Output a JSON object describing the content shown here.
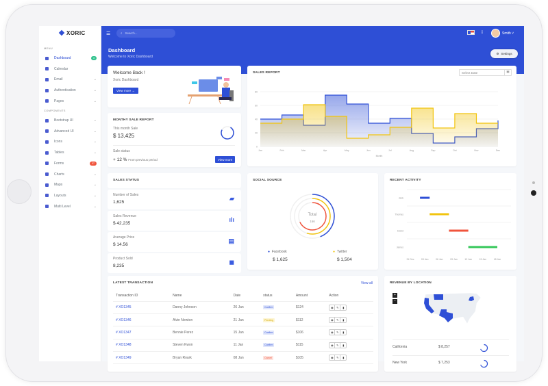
{
  "app": {
    "logo": "XORIC"
  },
  "sidebar": {
    "menu_label": "MENU",
    "components_label": "COMPONENTS",
    "items": [
      {
        "label": "Dashboard",
        "badge": "3",
        "badge_color": "#34c38f",
        "active": true
      },
      {
        "label": "Calendar"
      },
      {
        "label": "Email",
        "chevron": true
      },
      {
        "label": "Authentication",
        "chevron": true
      },
      {
        "label": "Pages",
        "chevron": true
      }
    ],
    "components": [
      {
        "label": "Bootstrap UI",
        "chevron": true
      },
      {
        "label": "Advanced UI",
        "chevron": true
      },
      {
        "label": "Icons",
        "chevron": true
      },
      {
        "label": "Tables",
        "chevron": true
      },
      {
        "label": "Forms",
        "badge": "07",
        "badge_color": "#f0543c"
      },
      {
        "label": "Charts",
        "chevron": true
      },
      {
        "label": "Maps",
        "chevron": true
      },
      {
        "label": "Layouts",
        "chevron": true
      },
      {
        "label": "Multi Level",
        "chevron": true
      }
    ]
  },
  "header": {
    "search_placeholder": "Search...",
    "user": "Smith",
    "title": "Dashboard",
    "subtitle": "Welcome to Xoric Dashboard",
    "settings_label": "Settings",
    "accent": "#2e4fd6"
  },
  "welcome": {
    "title": "Welcome Back !",
    "subtitle": "Xoric Dashboard",
    "button": "View more →"
  },
  "monthly": {
    "title": "MONTHY SALE REPORT",
    "this_month_label": "This month Sale",
    "this_month_value": "$ 13,425",
    "status_label": "Sale status",
    "change": "+ 12 %",
    "change_note": "From previous period",
    "button": "View more"
  },
  "sales_status": {
    "title": "SALES STATUS",
    "items": [
      {
        "label": "Number of Sales",
        "value": "1,625",
        "icon": "layers-icon"
      },
      {
        "label": "Sales Revenue",
        "value": "$ 42,235",
        "icon": "bar-chart-icon"
      },
      {
        "label": "Average Price",
        "value": "$ 14.56",
        "icon": "ticket-icon"
      },
      {
        "label": "Product Sold",
        "value": "8,235",
        "icon": "box-icon"
      }
    ]
  },
  "sales_report": {
    "title": "SALES REPORT",
    "date_placeholder": "Select Date"
  },
  "chart_data": [
    {
      "type": "line",
      "step": true,
      "xlabel": "Month",
      "ylim": [
        0,
        80
      ],
      "yticks": [
        "0",
        "20",
        "40",
        "60",
        "80"
      ],
      "categories": [
        "Jan",
        "Feb",
        "Mar",
        "Apr",
        "May",
        "Jun",
        "Jul",
        "Aug",
        "Sep",
        "Oct",
        "Nov",
        "Dec"
      ],
      "series": [
        {
          "color": "#2e4fd6",
          "values": [
            40,
            46,
            31,
            75,
            62,
            34,
            41,
            19,
            5,
            14,
            26,
            38
          ]
        },
        {
          "color": "#f1c40f",
          "values": [
            34,
            40,
            61,
            44,
            12,
            17,
            28,
            56,
            27,
            48,
            34,
            34
          ]
        }
      ]
    },
    {
      "type": "radial-bar",
      "title": "SOCIAL SOURCE",
      "center_label": "Total",
      "center_value": "166",
      "series": [
        {
          "name": "Facebook",
          "value": "$ 1,625",
          "percent": 44,
          "color": "#2e4fd6"
        },
        {
          "name": "Twitter",
          "value": "$ 1,504",
          "percent": 55,
          "color": "#f1c40f"
        },
        {
          "percent": 68,
          "color": "#f0543c"
        }
      ]
    },
    {
      "type": "timeline",
      "title": "RECENT ACTIVITY",
      "xticks": [
        "31 Dec",
        "03 Jan",
        "06 Jan",
        "09 Jan",
        "12 Jan",
        "15 Jan",
        "18 Jan"
      ],
      "rows": [
        {
          "name": "Jack",
          "start": 2,
          "end": 4,
          "color": "#2e4fd6"
        },
        {
          "name": "Thomas",
          "start": 4,
          "end": 8,
          "color": "#f1c40f"
        },
        {
          "name": "David",
          "start": 8,
          "end": 12,
          "color": "#f0543c"
        },
        {
          "name": "James",
          "start": 12,
          "end": 18,
          "color": "#34c759"
        }
      ]
    }
  ],
  "transactions": {
    "title": "LATEST TRANSACTION",
    "view_all": "View all",
    "columns": [
      "Transaction ID",
      "Name",
      "Date",
      "status",
      "Amount",
      "Action"
    ],
    "rows": [
      [
        "# XO1345",
        "Danny Johnson",
        "26 Jan",
        "Confirm",
        "$124"
      ],
      [
        "# XO1346",
        "Alvin Newton",
        "21 Jan",
        "Pending",
        "$112"
      ],
      [
        "# XO1347",
        "Bennie Perez",
        "15 Jan",
        "Confirm",
        "$106"
      ],
      [
        "# XO1348",
        "Steven Kwon",
        "11 Jan",
        "Confirm",
        "$115"
      ],
      [
        "# XO1349",
        "Bryan Roark",
        "08 Jan",
        "Cancel",
        "$105"
      ]
    ]
  },
  "location": {
    "title": "REVENUE BY LOCATION",
    "zoom_in": "+",
    "zoom_out": "−",
    "rows": [
      {
        "state": "California",
        "value": "$ 8,257"
      },
      {
        "state": "New York",
        "value": "$ 7,253"
      }
    ]
  }
}
